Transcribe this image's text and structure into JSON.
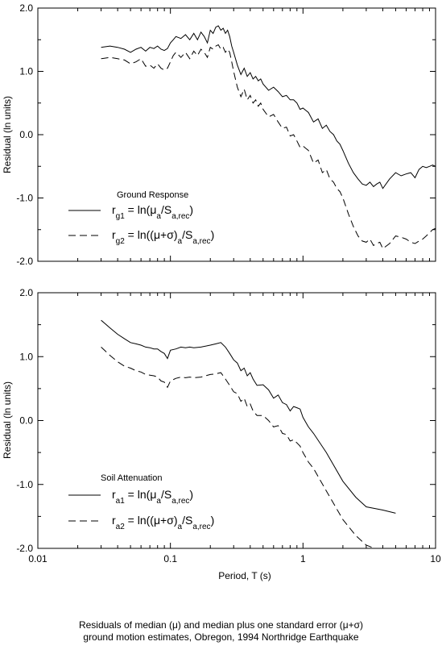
{
  "chart_data": [
    {
      "type": "line",
      "title": "Ground Response",
      "xlabel": "",
      "ylabel": "Residual (ln units)",
      "xscale": "log",
      "xlim": [
        0.01,
        10
      ],
      "ylim": [
        -2.0,
        2.0
      ],
      "grid": false,
      "legend": "lower-left",
      "ytick_labels": [
        "-2.0",
        "-1.0",
        "0.0",
        "1.0",
        "2.0"
      ],
      "legend_entries": [
        {
          "lhs": "r",
          "sub": "g1",
          "rhs_pre": " = ln(",
          "mu": "μ",
          "mu_sub": "a",
          "mid": "/S",
          "den_sub": "a,rec",
          "close": ")"
        },
        {
          "lhs": "r",
          "sub": "g2",
          "rhs_pre": " = ln((",
          "mu": "μ+σ)",
          "mu_sub": "a",
          "mid": "/S",
          "den_sub": "a,rec",
          "close": ")"
        }
      ],
      "series": [
        {
          "style": "solid",
          "x": [
            0.03,
            0.035,
            0.04,
            0.045,
            0.05,
            0.055,
            0.06,
            0.065,
            0.07,
            0.075,
            0.08,
            0.085,
            0.09,
            0.095,
            0.1,
            0.105,
            0.11,
            0.12,
            0.13,
            0.14,
            0.15,
            0.16,
            0.17,
            0.18,
            0.19,
            0.2,
            0.21,
            0.22,
            0.23,
            0.24,
            0.25,
            0.26,
            0.27,
            0.28,
            0.29,
            0.3,
            0.32,
            0.34,
            0.36,
            0.38,
            0.4,
            0.42,
            0.44,
            0.46,
            0.48,
            0.5,
            0.55,
            0.6,
            0.65,
            0.7,
            0.75,
            0.8,
            0.85,
            0.9,
            0.95,
            1.0,
            1.1,
            1.2,
            1.3,
            1.4,
            1.5,
            1.6,
            1.7,
            1.8,
            1.9,
            2.0,
            2.2,
            2.4,
            2.6,
            2.8,
            3.0,
            3.2,
            3.4,
            3.6,
            3.8,
            4.0,
            4.5,
            5.0,
            5.5,
            6.0,
            6.5,
            7.0,
            7.5,
            8.0,
            8.5,
            9.0,
            9.5,
            10.0
          ],
          "y": [
            1.38,
            1.4,
            1.38,
            1.35,
            1.3,
            1.35,
            1.38,
            1.32,
            1.38,
            1.36,
            1.4,
            1.35,
            1.33,
            1.36,
            1.45,
            1.5,
            1.55,
            1.52,
            1.58,
            1.5,
            1.6,
            1.5,
            1.62,
            1.55,
            1.45,
            1.65,
            1.6,
            1.7,
            1.72,
            1.65,
            1.68,
            1.6,
            1.65,
            1.55,
            1.4,
            1.3,
            1.1,
            0.95,
            1.05,
            0.92,
            0.98,
            0.88,
            0.92,
            0.85,
            0.88,
            0.8,
            0.7,
            0.75,
            0.68,
            0.6,
            0.62,
            0.55,
            0.55,
            0.5,
            0.4,
            0.42,
            0.35,
            0.2,
            0.25,
            0.1,
            0.15,
            0.05,
            0.0,
            -0.1,
            -0.15,
            -0.25,
            -0.45,
            -0.6,
            -0.7,
            -0.78,
            -0.8,
            -0.75,
            -0.82,
            -0.78,
            -0.75,
            -0.85,
            -0.7,
            -0.6,
            -0.65,
            -0.62,
            -0.6,
            -0.68,
            -0.55,
            -0.5,
            -0.52,
            -0.5,
            -0.48,
            -0.5
          ]
        },
        {
          "style": "dashed",
          "x": [
            0.03,
            0.035,
            0.04,
            0.045,
            0.05,
            0.055,
            0.06,
            0.065,
            0.07,
            0.075,
            0.08,
            0.085,
            0.09,
            0.095,
            0.1,
            0.105,
            0.11,
            0.12,
            0.13,
            0.14,
            0.15,
            0.16,
            0.17,
            0.18,
            0.19,
            0.2,
            0.21,
            0.22,
            0.23,
            0.24,
            0.25,
            0.26,
            0.27,
            0.28,
            0.29,
            0.3,
            0.32,
            0.34,
            0.36,
            0.38,
            0.4,
            0.42,
            0.44,
            0.46,
            0.48,
            0.5,
            0.55,
            0.6,
            0.65,
            0.7,
            0.75,
            0.8,
            0.85,
            0.9,
            0.95,
            1.0,
            1.1,
            1.2,
            1.3,
            1.4,
            1.5,
            1.6,
            1.7,
            1.8,
            1.9,
            2.0,
            2.2,
            2.4,
            2.6,
            2.8,
            3.0,
            3.2,
            3.4,
            3.6,
            3.8,
            4.0,
            4.5,
            5.0,
            5.5,
            6.0,
            6.5,
            7.0,
            7.5,
            8.0,
            8.5,
            9.0,
            9.5,
            10.0
          ],
          "y": [
            1.2,
            1.22,
            1.2,
            1.18,
            1.12,
            1.15,
            1.2,
            1.08,
            1.1,
            1.05,
            1.12,
            1.05,
            1.02,
            1.05,
            1.15,
            1.25,
            1.3,
            1.22,
            1.3,
            1.2,
            1.32,
            1.25,
            1.35,
            1.3,
            1.22,
            1.38,
            1.35,
            1.4,
            1.42,
            1.35,
            1.38,
            1.3,
            1.35,
            1.3,
            1.15,
            1.0,
            0.75,
            0.6,
            0.72,
            0.55,
            0.62,
            0.5,
            0.55,
            0.45,
            0.5,
            0.4,
            0.28,
            0.32,
            0.2,
            0.1,
            0.12,
            -0.02,
            0.0,
            -0.1,
            -0.2,
            -0.18,
            -0.25,
            -0.45,
            -0.4,
            -0.6,
            -0.55,
            -0.7,
            -0.75,
            -0.85,
            -0.9,
            -1.0,
            -1.25,
            -1.45,
            -1.6,
            -1.68,
            -1.7,
            -1.65,
            -1.75,
            -1.72,
            -1.7,
            -1.8,
            -1.72,
            -1.6,
            -1.62,
            -1.65,
            -1.7,
            -1.72,
            -1.68,
            -1.65,
            -1.6,
            -1.55,
            -1.5,
            -1.48
          ]
        }
      ]
    },
    {
      "type": "line",
      "title": "Soil Attenuation",
      "xlabel": "Period, T (s)",
      "ylabel": "Residual (ln units)",
      "xscale": "log",
      "xlim": [
        0.01,
        10
      ],
      "ylim": [
        -2.0,
        2.0
      ],
      "grid": false,
      "legend": "lower-left",
      "xtick_labels": [
        "0.01",
        "0.1",
        "1",
        "10"
      ],
      "ytick_labels": [
        "-2.0",
        "-1.0",
        "0.0",
        "1.0",
        "2.0"
      ],
      "legend_entries": [
        {
          "lhs": "r",
          "sub": "a1",
          "rhs_pre": " = ln(",
          "mu": "μ",
          "mu_sub": "a",
          "mid": "/S",
          "den_sub": "a,rec",
          "close": ")"
        },
        {
          "lhs": "r",
          "sub": "a2",
          "rhs_pre": " = ln((",
          "mu": "μ+σ)",
          "mu_sub": "a",
          "mid": "/S",
          "den_sub": "a,rec",
          "close": ")"
        }
      ],
      "series": [
        {
          "style": "solid",
          "x": [
            0.03,
            0.035,
            0.04,
            0.045,
            0.05,
            0.055,
            0.06,
            0.065,
            0.07,
            0.075,
            0.08,
            0.085,
            0.09,
            0.095,
            0.1,
            0.11,
            0.12,
            0.13,
            0.14,
            0.15,
            0.17,
            0.2,
            0.22,
            0.24,
            0.26,
            0.28,
            0.3,
            0.32,
            0.34,
            0.36,
            0.38,
            0.4,
            0.42,
            0.45,
            0.5,
            0.55,
            0.6,
            0.65,
            0.7,
            0.75,
            0.8,
            0.85,
            0.9,
            0.95,
            1.0,
            1.1,
            1.2,
            1.5,
            2.0,
            2.5,
            3.0,
            4.0,
            5.0
          ],
          "y": [
            1.57,
            1.45,
            1.35,
            1.28,
            1.22,
            1.2,
            1.18,
            1.15,
            1.14,
            1.12,
            1.12,
            1.08,
            1.05,
            0.97,
            1.1,
            1.12,
            1.15,
            1.14,
            1.15,
            1.14,
            1.15,
            1.18,
            1.2,
            1.22,
            1.15,
            1.05,
            0.95,
            0.9,
            0.78,
            0.82,
            0.7,
            0.75,
            0.65,
            0.55,
            0.56,
            0.48,
            0.35,
            0.4,
            0.28,
            0.25,
            0.15,
            0.22,
            0.2,
            0.18,
            0.05,
            -0.1,
            -0.2,
            -0.5,
            -0.95,
            -1.2,
            -1.35,
            -1.4,
            -1.45
          ]
        },
        {
          "style": "dashed",
          "x": [
            0.03,
            0.035,
            0.04,
            0.045,
            0.05,
            0.055,
            0.06,
            0.065,
            0.07,
            0.075,
            0.08,
            0.085,
            0.09,
            0.095,
            0.1,
            0.11,
            0.12,
            0.13,
            0.14,
            0.15,
            0.17,
            0.2,
            0.22,
            0.24,
            0.26,
            0.28,
            0.3,
            0.32,
            0.34,
            0.36,
            0.38,
            0.4,
            0.42,
            0.45,
            0.5,
            0.55,
            0.6,
            0.65,
            0.7,
            0.75,
            0.8,
            0.85,
            0.9,
            0.95,
            1.0,
            1.1,
            1.2,
            1.5,
            2.0,
            2.5,
            3.0,
            4.0,
            5.0
          ],
          "y": [
            1.15,
            1.02,
            0.92,
            0.85,
            0.82,
            0.78,
            0.76,
            0.72,
            0.71,
            0.7,
            0.68,
            0.62,
            0.6,
            0.52,
            0.62,
            0.66,
            0.68,
            0.67,
            0.68,
            0.67,
            0.68,
            0.72,
            0.73,
            0.75,
            0.65,
            0.55,
            0.45,
            0.42,
            0.3,
            0.35,
            0.22,
            0.26,
            0.15,
            0.08,
            0.08,
            0.0,
            -0.1,
            -0.08,
            -0.2,
            -0.22,
            -0.32,
            -0.3,
            -0.35,
            -0.4,
            -0.5,
            -0.65,
            -0.75,
            -1.1,
            -1.55,
            -1.8,
            -1.95,
            -2.05,
            -2.12
          ]
        }
      ]
    }
  ],
  "caption": {
    "line1": "Residuals of median (μ) and median plus one standard error (μ+σ)",
    "line2": "ground motion estimates, Obregon, 1994 Northridge Earthquake"
  }
}
